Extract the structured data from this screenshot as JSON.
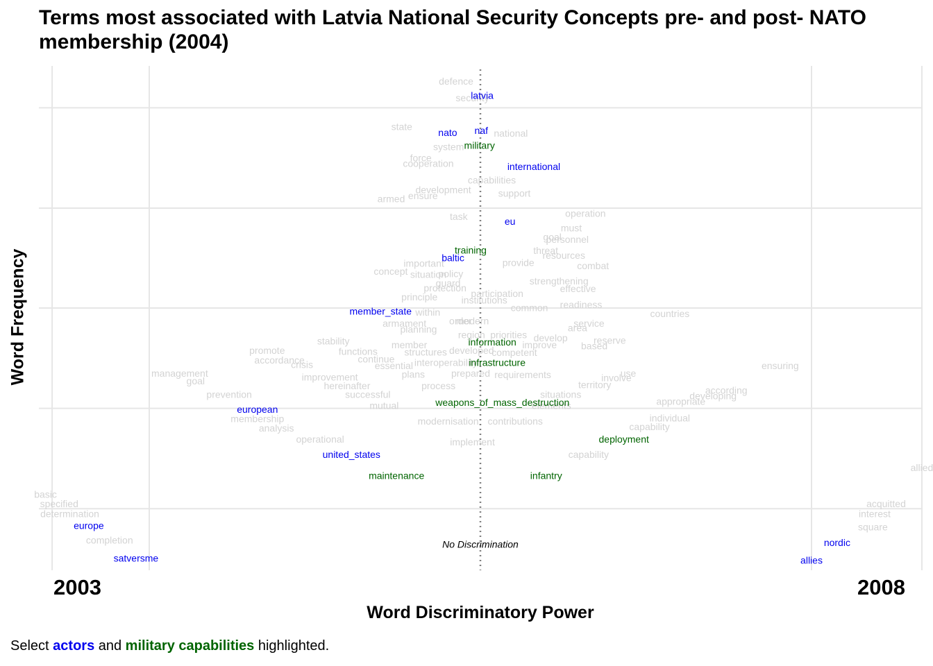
{
  "title": "Terms most associated with Latvia National Security Concepts pre- and post- NATO membership (2004)",
  "colors": {
    "actor": "#0000ee",
    "military": "#006400",
    "other": "#d3d3d3",
    "grid": "#e6e6e6",
    "midline": "#808080"
  },
  "chart_data": {
    "type": "scatter",
    "title": "Terms most associated with Latvia National Security Concepts pre- and post- NATO membership (2004)",
    "xlabel": "Word Discriminatory Power",
    "ylabel": "Word Frequency",
    "x_left_label": "2003",
    "x_right_label": "2008",
    "center_annotation": "No Discrimination",
    "xlim": [
      -1.0,
      1.0
    ],
    "ylim": [
      0.0,
      1.0
    ],
    "x_gridlines": [
      -0.97,
      -0.75,
      0.75,
      1.0
    ],
    "y_gridlines": [
      0.122,
      0.321,
      0.52,
      0.718,
      0.917
    ],
    "legend": "none",
    "caption": {
      "prefix": "Select ",
      "actors": "actors",
      "middle": " and ",
      "military": "military capabilities",
      "suffix": " highlighted."
    },
    "terms": [
      {
        "label": "defence",
        "x": -0.055,
        "y": 0.968,
        "cat": "other"
      },
      {
        "label": "security",
        "x": -0.018,
        "y": 0.935,
        "cat": "other"
      },
      {
        "label": "latvia",
        "x": 0.004,
        "y": 0.94,
        "cat": "actor"
      },
      {
        "label": "state",
        "x": -0.178,
        "y": 0.878,
        "cat": "other"
      },
      {
        "label": "naf",
        "x": 0.002,
        "y": 0.87,
        "cat": "actor"
      },
      {
        "label": "national",
        "x": 0.069,
        "y": 0.865,
        "cat": "other"
      },
      {
        "label": "nato",
        "x": -0.074,
        "y": 0.866,
        "cat": "actor"
      },
      {
        "label": "system",
        "x": -0.072,
        "y": 0.838,
        "cat": "other"
      },
      {
        "label": "military",
        "x": -0.002,
        "y": 0.841,
        "cat": "military"
      },
      {
        "label": "force",
        "x": -0.135,
        "y": 0.816,
        "cat": "other"
      },
      {
        "label": "cooperation",
        "x": -0.118,
        "y": 0.805,
        "cat": "other"
      },
      {
        "label": "international",
        "x": 0.121,
        "y": 0.799,
        "cat": "actor"
      },
      {
        "label": "capabilities",
        "x": 0.026,
        "y": 0.772,
        "cat": "other"
      },
      {
        "label": "development",
        "x": -0.084,
        "y": 0.753,
        "cat": "other"
      },
      {
        "label": "ensure",
        "x": -0.13,
        "y": 0.741,
        "cat": "other"
      },
      {
        "label": "support",
        "x": 0.077,
        "y": 0.746,
        "cat": "other"
      },
      {
        "label": "armed",
        "x": -0.202,
        "y": 0.735,
        "cat": "other"
      },
      {
        "label": "operation",
        "x": 0.238,
        "y": 0.706,
        "cat": "other"
      },
      {
        "label": "task",
        "x": -0.049,
        "y": 0.7,
        "cat": "other"
      },
      {
        "label": "eu",
        "x": 0.067,
        "y": 0.69,
        "cat": "actor"
      },
      {
        "label": "must",
        "x": 0.206,
        "y": 0.677,
        "cat": "other"
      },
      {
        "label": "goal",
        "x": 0.163,
        "y": 0.659,
        "cat": "other"
      },
      {
        "label": "personnel",
        "x": 0.197,
        "y": 0.654,
        "cat": "other"
      },
      {
        "label": "training",
        "x": -0.022,
        "y": 0.633,
        "cat": "military"
      },
      {
        "label": "threat",
        "x": 0.148,
        "y": 0.632,
        "cat": "other"
      },
      {
        "label": "resources",
        "x": 0.189,
        "y": 0.623,
        "cat": "other"
      },
      {
        "label": "baltic",
        "x": -0.062,
        "y": 0.618,
        "cat": "actor"
      },
      {
        "label": "important",
        "x": -0.128,
        "y": 0.607,
        "cat": "other"
      },
      {
        "label": "provide",
        "x": 0.086,
        "y": 0.608,
        "cat": "other"
      },
      {
        "label": "combat",
        "x": 0.255,
        "y": 0.602,
        "cat": "other"
      },
      {
        "label": "concept",
        "x": -0.203,
        "y": 0.591,
        "cat": "other"
      },
      {
        "label": "situation",
        "x": -0.118,
        "y": 0.585,
        "cat": "other"
      },
      {
        "label": "policy",
        "x": -0.067,
        "y": 0.586,
        "cat": "other"
      },
      {
        "label": "guard",
        "x": -0.073,
        "y": 0.568,
        "cat": "other"
      },
      {
        "label": "strengthening",
        "x": 0.178,
        "y": 0.572,
        "cat": "other"
      },
      {
        "label": "protection",
        "x": -0.08,
        "y": 0.558,
        "cat": "other"
      },
      {
        "label": "participation",
        "x": 0.038,
        "y": 0.547,
        "cat": "other"
      },
      {
        "label": "effective",
        "x": 0.221,
        "y": 0.557,
        "cat": "other"
      },
      {
        "label": "principle",
        "x": -0.138,
        "y": 0.54,
        "cat": "other"
      },
      {
        "label": "institutions",
        "x": 0.009,
        "y": 0.534,
        "cat": "other"
      },
      {
        "label": "common",
        "x": 0.111,
        "y": 0.519,
        "cat": "other"
      },
      {
        "label": "readiness",
        "x": 0.228,
        "y": 0.525,
        "cat": "other"
      },
      {
        "label": "member_state",
        "x": -0.226,
        "y": 0.512,
        "cat": "actor"
      },
      {
        "label": "within",
        "x": -0.119,
        "y": 0.51,
        "cat": "other"
      },
      {
        "label": "countries",
        "x": 0.429,
        "y": 0.507,
        "cat": "other"
      },
      {
        "label": "order",
        "x": -0.045,
        "y": 0.493,
        "cat": "other"
      },
      {
        "label": "modern",
        "x": -0.018,
        "y": 0.493,
        "cat": "other"
      },
      {
        "label": "armament",
        "x": -0.172,
        "y": 0.488,
        "cat": "other"
      },
      {
        "label": "service",
        "x": 0.246,
        "y": 0.488,
        "cat": "other"
      },
      {
        "label": "area",
        "x": 0.22,
        "y": 0.479,
        "cat": "other"
      },
      {
        "label": "planning",
        "x": -0.14,
        "y": 0.476,
        "cat": "other"
      },
      {
        "label": "region",
        "x": -0.02,
        "y": 0.465,
        "cat": "other"
      },
      {
        "label": "priorities",
        "x": 0.064,
        "y": 0.465,
        "cat": "other"
      },
      {
        "label": "develop",
        "x": 0.159,
        "y": 0.459,
        "cat": "other"
      },
      {
        "label": "stability",
        "x": -0.333,
        "y": 0.453,
        "cat": "other"
      },
      {
        "label": "information",
        "x": 0.027,
        "y": 0.451,
        "cat": "military"
      },
      {
        "label": "reserve",
        "x": 0.293,
        "y": 0.454,
        "cat": "other"
      },
      {
        "label": "member",
        "x": -0.161,
        "y": 0.445,
        "cat": "other"
      },
      {
        "label": "improve",
        "x": 0.134,
        "y": 0.445,
        "cat": "other"
      },
      {
        "label": "based",
        "x": 0.258,
        "y": 0.443,
        "cat": "other"
      },
      {
        "label": "promote",
        "x": -0.483,
        "y": 0.434,
        "cat": "other"
      },
      {
        "label": "functions",
        "x": -0.277,
        "y": 0.432,
        "cat": "other"
      },
      {
        "label": "structures",
        "x": -0.124,
        "y": 0.431,
        "cat": "other"
      },
      {
        "label": "developed",
        "x": -0.02,
        "y": 0.434,
        "cat": "other"
      },
      {
        "label": "competent",
        "x": 0.077,
        "y": 0.43,
        "cat": "other"
      },
      {
        "label": "accordance",
        "x": -0.455,
        "y": 0.415,
        "cat": "other"
      },
      {
        "label": "continue",
        "x": -0.236,
        "y": 0.417,
        "cat": "other"
      },
      {
        "label": "interoperability",
        "x": -0.078,
        "y": 0.41,
        "cat": "other"
      },
      {
        "label": "infrastructure",
        "x": 0.038,
        "y": 0.41,
        "cat": "military"
      },
      {
        "label": "crisis",
        "x": -0.404,
        "y": 0.406,
        "cat": "other"
      },
      {
        "label": "essential",
        "x": -0.196,
        "y": 0.404,
        "cat": "other"
      },
      {
        "label": "ensuring",
        "x": 0.679,
        "y": 0.404,
        "cat": "other"
      },
      {
        "label": "management",
        "x": -0.681,
        "y": 0.389,
        "cat": "other"
      },
      {
        "label": "plans",
        "x": -0.152,
        "y": 0.387,
        "cat": "other"
      },
      {
        "label": "prepared",
        "x": -0.022,
        "y": 0.389,
        "cat": "other"
      },
      {
        "label": "requirements",
        "x": 0.096,
        "y": 0.386,
        "cat": "other"
      },
      {
        "label": "use",
        "x": 0.335,
        "y": 0.389,
        "cat": "other"
      },
      {
        "label": "improvement",
        "x": -0.341,
        "y": 0.381,
        "cat": "other"
      },
      {
        "label": "involve",
        "x": 0.308,
        "y": 0.38,
        "cat": "other"
      },
      {
        "label": "goal",
        "x": -0.645,
        "y": 0.374,
        "cat": "other"
      },
      {
        "label": "hereinafter",
        "x": -0.302,
        "y": 0.364,
        "cat": "other"
      },
      {
        "label": "process",
        "x": -0.095,
        "y": 0.364,
        "cat": "other"
      },
      {
        "label": "territory",
        "x": 0.259,
        "y": 0.366,
        "cat": "other"
      },
      {
        "label": "according",
        "x": 0.557,
        "y": 0.355,
        "cat": "other"
      },
      {
        "label": "prevention",
        "x": -0.569,
        "y": 0.347,
        "cat": "other"
      },
      {
        "label": "successful",
        "x": -0.255,
        "y": 0.347,
        "cat": "other"
      },
      {
        "label": "situations",
        "x": 0.182,
        "y": 0.347,
        "cat": "other"
      },
      {
        "label": "developing",
        "x": 0.527,
        "y": 0.344,
        "cat": "other"
      },
      {
        "label": "weapons_of_mass_destruction",
        "x": 0.05,
        "y": 0.331,
        "cat": "military"
      },
      {
        "label": "appropriate",
        "x": 0.454,
        "y": 0.333,
        "cat": "other"
      },
      {
        "label": "mutual",
        "x": -0.218,
        "y": 0.325,
        "cat": "other"
      },
      {
        "label": "elements",
        "x": 0.161,
        "y": 0.325,
        "cat": "other"
      },
      {
        "label": "european",
        "x": -0.505,
        "y": 0.317,
        "cat": "actor"
      },
      {
        "label": "individual",
        "x": 0.429,
        "y": 0.3,
        "cat": "other"
      },
      {
        "label": "membership",
        "x": -0.505,
        "y": 0.299,
        "cat": "other"
      },
      {
        "label": "modernisation",
        "x": -0.073,
        "y": 0.294,
        "cat": "other"
      },
      {
        "label": "contributions",
        "x": 0.079,
        "y": 0.294,
        "cat": "other"
      },
      {
        "label": "capability",
        "x": 0.383,
        "y": 0.283,
        "cat": "other"
      },
      {
        "label": "analysis",
        "x": -0.462,
        "y": 0.28,
        "cat": "other"
      },
      {
        "label": "deployment",
        "x": 0.325,
        "y": 0.258,
        "cat": "military"
      },
      {
        "label": "operational",
        "x": -0.363,
        "y": 0.258,
        "cat": "other"
      },
      {
        "label": "implement",
        "x": -0.018,
        "y": 0.253,
        "cat": "other"
      },
      {
        "label": "united_states",
        "x": -0.292,
        "y": 0.228,
        "cat": "actor"
      },
      {
        "label": "capability",
        "x": 0.245,
        "y": 0.228,
        "cat": "other"
      },
      {
        "label": "maintenance",
        "x": -0.19,
        "y": 0.186,
        "cat": "military"
      },
      {
        "label": "infantry",
        "x": 0.149,
        "y": 0.186,
        "cat": "military"
      },
      {
        "label": "allied",
        "x": 1.0,
        "y": 0.202,
        "cat": "other"
      },
      {
        "label": "basic",
        "x": -0.985,
        "y": 0.149,
        "cat": "other"
      },
      {
        "label": "specified",
        "x": -0.954,
        "y": 0.13,
        "cat": "other"
      },
      {
        "label": "acquitted",
        "x": 0.919,
        "y": 0.13,
        "cat": "other"
      },
      {
        "label": "determination",
        "x": -0.93,
        "y": 0.11,
        "cat": "other"
      },
      {
        "label": "interest",
        "x": 0.893,
        "y": 0.11,
        "cat": "other"
      },
      {
        "label": "europe",
        "x": -0.887,
        "y": 0.087,
        "cat": "actor"
      },
      {
        "label": "square",
        "x": 0.889,
        "y": 0.084,
        "cat": "other"
      },
      {
        "label": "nordic",
        "x": 0.808,
        "y": 0.053,
        "cat": "actor"
      },
      {
        "label": "completion",
        "x": -0.84,
        "y": 0.058,
        "cat": "other"
      },
      {
        "label": "satversme",
        "x": -0.78,
        "y": 0.022,
        "cat": "actor"
      },
      {
        "label": "allies",
        "x": 0.75,
        "y": 0.018,
        "cat": "actor"
      }
    ]
  }
}
